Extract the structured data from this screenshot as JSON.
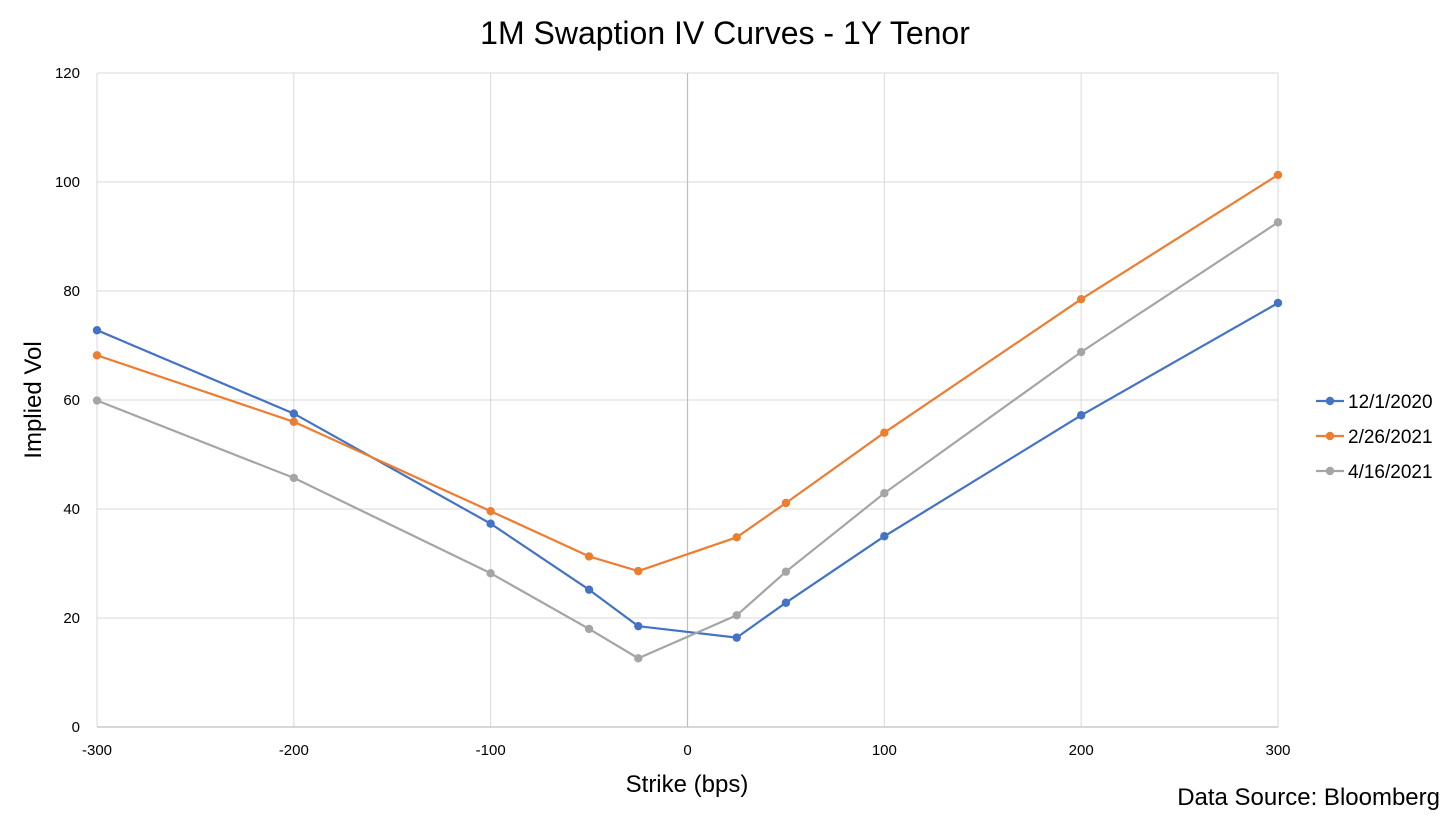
{
  "chart_data": {
    "type": "line",
    "title": "1M Swaption IV Curves - 1Y Tenor",
    "xlabel": "Strike (bps)",
    "ylabel": "Implied Vol",
    "source_note": "Data Source: Bloomberg",
    "xlim": [
      -300,
      300
    ],
    "ylim": [
      0,
      120
    ],
    "xticks": [
      -300,
      -200,
      -100,
      0,
      100,
      200,
      300
    ],
    "yticks": [
      0,
      20,
      40,
      60,
      80,
      100,
      120
    ],
    "grid": true,
    "legend_position": "right",
    "x": [
      -300,
      -200,
      -100,
      -50,
      -25,
      25,
      50,
      100,
      200,
      300
    ],
    "series": [
      {
        "name": "12/1/2020",
        "color": "#4472C4",
        "values": [
          72.8,
          57.5,
          37.3,
          25.2,
          18.5,
          16.4,
          22.8,
          35.0,
          57.2,
          77.8
        ]
      },
      {
        "name": "2/26/2021",
        "color": "#ED7D31",
        "values": [
          68.2,
          56.0,
          39.6,
          31.3,
          28.6,
          34.8,
          41.1,
          54.0,
          78.5,
          101.3
        ]
      },
      {
        "name": "4/16/2021",
        "color": "#A5A5A5",
        "values": [
          59.9,
          45.7,
          28.2,
          18.0,
          12.6,
          20.5,
          28.5,
          42.9,
          68.8,
          92.6
        ]
      }
    ]
  }
}
